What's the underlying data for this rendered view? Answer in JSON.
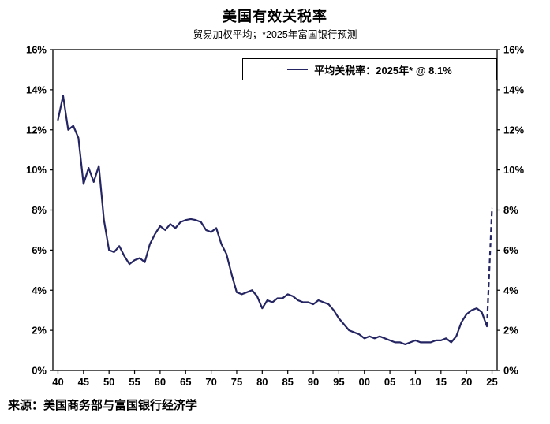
{
  "header": {
    "title": "美国有效关税率",
    "subtitle": "贸易加权平均；*2025年富国银行预测"
  },
  "legend": {
    "label": "平均关税率：2025年* @ 8.1%"
  },
  "footer": {
    "source": "来源：美国商务部与富国银行经济学"
  },
  "chart_data": {
    "type": "line",
    "title": "美国有效关税率",
    "subtitle": "贸易加权平均；*2025年富国银行预测",
    "xlabel": "",
    "ylabel": "",
    "ylim": [
      0,
      16
    ],
    "ytick_step": 2,
    "ytick_suffix": "%",
    "xlim": [
      1939,
      2026
    ],
    "xtick_years": [
      1940,
      1945,
      1950,
      1955,
      1960,
      1965,
      1970,
      1975,
      1980,
      1985,
      1990,
      1995,
      2000,
      2005,
      2010,
      2015,
      2020,
      2025
    ],
    "xtick_labels": [
      "40",
      "45",
      "50",
      "55",
      "60",
      "65",
      "70",
      "75",
      "80",
      "85",
      "90",
      "95",
      "00",
      "05",
      "10",
      "15",
      "20",
      "25"
    ],
    "grid": false,
    "legend_position": "top-right-inside",
    "axis_labels_both_sides": true,
    "series": [
      {
        "name": "平均关税率：2025年* @ 8.1%",
        "color": "#242562",
        "x_start": 1940,
        "x_step": 1,
        "dash_start_year": 2024,
        "forecast_note": "2025 value is Wells Fargo forecast (dashed)",
        "values": [
          12.5,
          13.7,
          12.0,
          12.2,
          11.6,
          9.3,
          10.1,
          9.4,
          10.2,
          7.5,
          6.0,
          5.9,
          6.2,
          5.7,
          5.3,
          5.5,
          5.6,
          5.4,
          6.3,
          6.8,
          7.2,
          7.0,
          7.3,
          7.1,
          7.4,
          7.5,
          7.55,
          7.5,
          7.4,
          7.0,
          6.9,
          7.1,
          6.3,
          5.8,
          4.8,
          3.9,
          3.8,
          3.9,
          4.0,
          3.7,
          3.1,
          3.5,
          3.4,
          3.6,
          3.6,
          3.8,
          3.7,
          3.5,
          3.4,
          3.4,
          3.3,
          3.5,
          3.4,
          3.3,
          3.0,
          2.6,
          2.3,
          2.0,
          1.9,
          1.8,
          1.6,
          1.7,
          1.6,
          1.7,
          1.6,
          1.5,
          1.4,
          1.4,
          1.3,
          1.4,
          1.5,
          1.4,
          1.4,
          1.4,
          1.5,
          1.5,
          1.6,
          1.4,
          1.7,
          2.4,
          2.8,
          3.0,
          3.1,
          2.9,
          2.2,
          8.1
        ]
      }
    ]
  }
}
